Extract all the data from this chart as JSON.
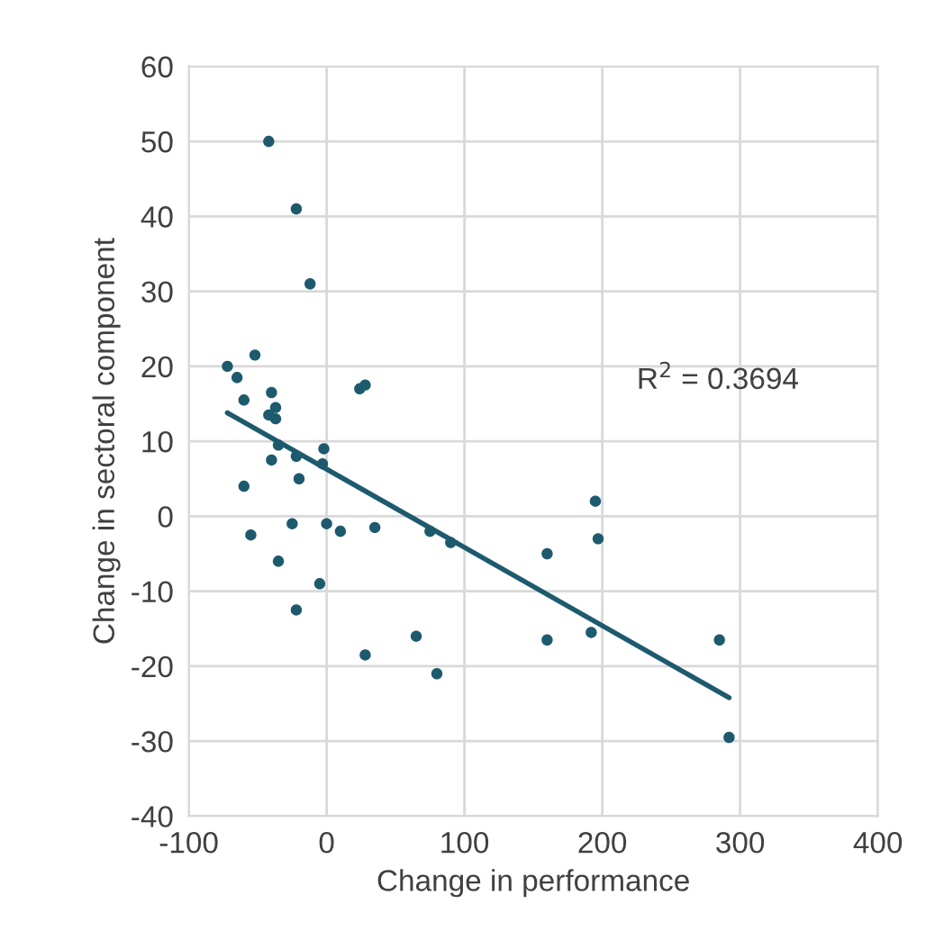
{
  "chart_data": {
    "type": "scatter",
    "xlabel": "Change in performance",
    "ylabel": "Change in sectoral component",
    "xlim": [
      -100,
      400
    ],
    "xticks": [
      -100,
      0,
      100,
      200,
      300,
      400
    ],
    "ylim": [
      -40,
      60
    ],
    "yticks": [
      -40,
      -30,
      -20,
      -10,
      0,
      10,
      20,
      30,
      40,
      50,
      60
    ],
    "grid": true,
    "series": [
      {
        "marker": "circle",
        "color": "#1d5a6e",
        "x": [
          -42,
          -22,
          -12,
          -52,
          -72,
          -65,
          -60,
          -40,
          -37,
          -37,
          -42,
          -40,
          -35,
          -22,
          -20,
          -2,
          -3,
          -60,
          -55,
          -35,
          -25,
          -22,
          0,
          -5,
          10,
          24,
          28,
          35,
          28,
          65,
          80,
          75,
          90,
          160,
          160,
          192,
          195,
          197,
          285,
          292
        ],
        "values": [
          50,
          41,
          31,
          21.5,
          20,
          18.5,
          15.5,
          16.5,
          14.5,
          13,
          13.5,
          7.5,
          9.5,
          8,
          5,
          9,
          7,
          4,
          -2.5,
          -6,
          -1,
          -12.5,
          -1,
          -9,
          -2,
          17,
          17.5,
          -1.5,
          -18.5,
          -16,
          -21,
          -2,
          -3.5,
          -5,
          -16.5,
          -15.5,
          2,
          -3,
          -16.5,
          -29.5
        ]
      },
      {
        "type": "line",
        "color": "#1d5a6e",
        "x": [
          -72,
          292
        ],
        "values": [
          13.8,
          -24.2
        ]
      }
    ],
    "annotations": [
      "R$^{2}$ = 0.3694"
    ]
  }
}
